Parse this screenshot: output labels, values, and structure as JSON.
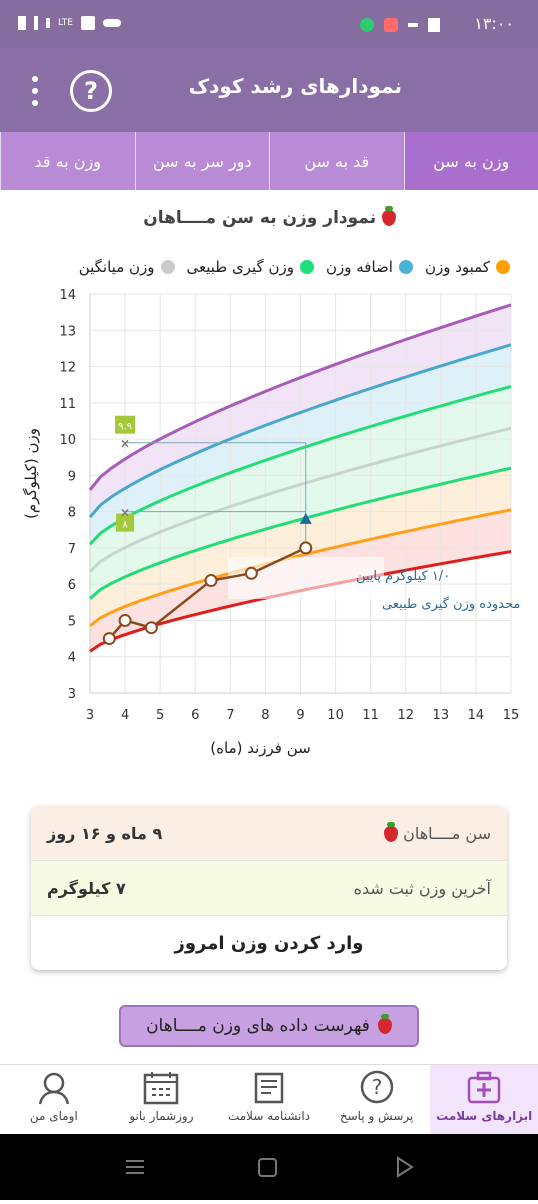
{
  "status": {
    "time": "۱۳:۰۰",
    "network": "LTE"
  },
  "appbar": {
    "title": "نمودارهای رشد کودک",
    "help_icon": "help-circle-icon",
    "menu_icon": "more-vert-icon"
  },
  "tabs": [
    {
      "label": "وزن به سن",
      "active": true
    },
    {
      "label": "قد به سن",
      "active": false
    },
    {
      "label": "دور سر به سن",
      "active": false
    },
    {
      "label": "وزن به قد",
      "active": false
    }
  ],
  "chart_title": "نمودار وزن به سن مــــاهان",
  "legend": [
    {
      "label": "کمبود وزن",
      "color": "#ffa000"
    },
    {
      "label": "اضافه وزن",
      "color": "#49b3d6"
    },
    {
      "label": "وزن گیری طبیعی",
      "color": "#1ee07a"
    },
    {
      "label": "وزن میانگین",
      "color": "#cccccc"
    }
  ],
  "chart_data": {
    "type": "line",
    "xlabel": "سن فرزند (ماه)",
    "ylabel": "وزن (کیلوگرم)",
    "xlim": [
      3,
      15
    ],
    "ylim": [
      3,
      14
    ],
    "x_ticks": [
      "3",
      "4",
      "5",
      "6",
      "7",
      "8",
      "9",
      "10",
      "11",
      "12",
      "13",
      "14",
      "15"
    ],
    "y_ticks": [
      "3",
      "4",
      "5",
      "6",
      "7",
      "8",
      "9",
      "10",
      "11",
      "12",
      "13",
      "14"
    ],
    "curves_x": [
      3,
      15
    ],
    "curves": [
      {
        "key": "red",
        "color": "#e31b1b",
        "y": [
          4.15,
          6.9
        ]
      },
      {
        "key": "orange",
        "color": "#ff9f1a",
        "y": [
          4.85,
          8.05
        ]
      },
      {
        "key": "green_low",
        "color": "#22dd77",
        "y": [
          5.6,
          9.2
        ]
      },
      {
        "key": "average",
        "color": "#c8d5cf",
        "y": [
          6.35,
          10.3
        ]
      },
      {
        "key": "green_high",
        "color": "#22dd77",
        "y": [
          7.1,
          11.45
        ]
      },
      {
        "key": "blue",
        "color": "#45a8cc",
        "y": [
          7.85,
          12.6
        ]
      },
      {
        "key": "purple",
        "color": "#a85bb8",
        "y": [
          8.6,
          13.7
        ]
      }
    ],
    "series": [
      {
        "x": [
          3.55,
          4.0,
          4.75,
          6.45,
          7.6,
          9.15
        ],
        "y": [
          4.5,
          5.0,
          4.8,
          6.1,
          6.3,
          7.0
        ],
        "color": "#8b4a1d"
      }
    ],
    "markers": {
      "top": "۹.۹",
      "bottom": "۸"
    },
    "annotation": {
      "line1": "۱/۰ کیلوگرم پایین",
      "line2": "محدوده وزن گیری طبیعی"
    }
  },
  "info": {
    "name_label": "سن مــــاهان",
    "age_value": "۹ ماه و ۱۶ روز",
    "last_weight_label": "آخرین وزن ثبت شده",
    "last_weight_value": "۷ کیلوگرم",
    "enter_weight": "وارد کردن وزن امروز"
  },
  "list_button": "فهرست داده های وزن مــــاهان",
  "bottom_nav": [
    {
      "label": "ابزارهای سلامت",
      "icon": "medical-kit-icon",
      "active": true
    },
    {
      "label": "پرسش و پاسخ",
      "icon": "question-bubble-icon",
      "active": false
    },
    {
      "label": "دانشنامه سلامت",
      "icon": "newspaper-icon",
      "active": false
    },
    {
      "label": "روزشمار بانو",
      "icon": "calendar-icon",
      "active": false
    },
    {
      "label": "اومای من",
      "icon": "woman-avatar-icon",
      "active": false
    }
  ]
}
